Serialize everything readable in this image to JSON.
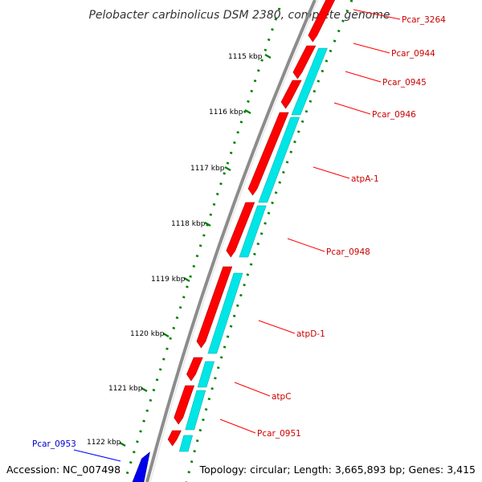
{
  "title": "Pelobacter carbinolicus DSM 2380, complete genome",
  "footer": {
    "accession": "Accession: NC_007498",
    "topology": "Topology: circular; Length: 3,665,893 bp; Genes: 3,415"
  },
  "colors": {
    "backbone": "#8c8c8c",
    "forward_gene": "#ff0000",
    "cds_track": "#00e5e5",
    "reverse_gene": "#0000ee",
    "gc_ticks": "#008000",
    "forward_label": "#cc0000",
    "reverse_label": "#0000cc"
  },
  "scale_ticks": [
    "1115 kbp",
    "1116 kbp",
    "1117 kbp",
    "1118 kbp",
    "1119 kbp",
    "1120 kbp",
    "1121 kbp",
    "1122 kbp"
  ],
  "gene_labels": [
    {
      "name": "Pcar_3264",
      "strand": "forward"
    },
    {
      "name": "Pcar_0944",
      "strand": "forward"
    },
    {
      "name": "Pcar_0945",
      "strand": "forward"
    },
    {
      "name": "Pcar_0946",
      "strand": "forward"
    },
    {
      "name": "atpA-1",
      "strand": "forward"
    },
    {
      "name": "Pcar_0948",
      "strand": "forward"
    },
    {
      "name": "atpD-1",
      "strand": "forward"
    },
    {
      "name": "atpC",
      "strand": "forward"
    },
    {
      "name": "Pcar_0951",
      "strand": "forward"
    },
    {
      "name": "Pcar_0953",
      "strand": "reverse"
    }
  ]
}
